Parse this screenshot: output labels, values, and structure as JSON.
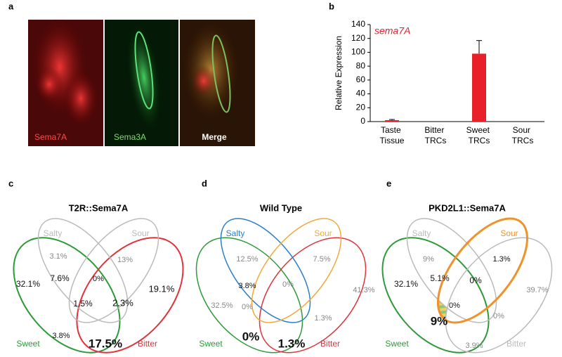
{
  "panel_a": {
    "label": "a",
    "images": [
      "Sema7A",
      "Sema3A",
      "Merge"
    ]
  },
  "chart_data": {
    "type": "bar",
    "panel_label": "b",
    "annotation": "sema7A",
    "ylabel": "Relative Expression",
    "categories": [
      "Taste Tissue",
      "Bitter TRCs",
      "Sweet TRCs",
      "Sour TRCs"
    ],
    "values": [
      2,
      0,
      98,
      0
    ],
    "errors": [
      1,
      0,
      19,
      0
    ],
    "color": "#e8202a",
    "ylim": [
      0,
      140
    ],
    "yticks": [
      0,
      20,
      40,
      60,
      80,
      100,
      120,
      140
    ]
  },
  "venns": [
    {
      "label": "c",
      "title": "T2R::Sema7A",
      "sets": [
        {
          "name": "Salty",
          "color": "#bbbbbb"
        },
        {
          "name": "Sour",
          "color": "#bbbbbb"
        },
        {
          "name": "Sweet",
          "color": "#2e9a3a"
        },
        {
          "name": "Bitter",
          "color": "#e0333a"
        }
      ],
      "regions": [
        "3.1%",
        "13%",
        "7.6%",
        "0%",
        "32.1%",
        "19.1%",
        "1.5%",
        "2.3%",
        "3.8%",
        "17.5%"
      ]
    },
    {
      "label": "d",
      "title": "Wild Type",
      "sets": [
        {
          "name": "Salty",
          "color": "#2a7fc9"
        },
        {
          "name": "Sour",
          "color": "#f2a93b"
        },
        {
          "name": "Sweet",
          "color": "#2e9a3a"
        },
        {
          "name": "Bitter",
          "color": "#e0333a"
        }
      ],
      "regions": [
        "12.5%",
        "7.5%",
        "3.8%",
        "0%",
        "32.5%",
        "41.3%",
        "0%",
        "1.3%",
        "0%",
        "1.3%"
      ]
    },
    {
      "label": "e",
      "title": "PKD2L1::Sema7A",
      "sets": [
        {
          "name": "Salty",
          "color": "#bbbbbb"
        },
        {
          "name": "Sour",
          "color": "#f0922b"
        },
        {
          "name": "Sweet",
          "color": "#2e9a3a"
        },
        {
          "name": "Bitter",
          "color": "#bbbbbb"
        }
      ],
      "regions": [
        "9%",
        "1.3%",
        "5.1%",
        "0%",
        "32.1%",
        "39.7%",
        "0%",
        "0%",
        "9%",
        "3.9%"
      ]
    }
  ]
}
